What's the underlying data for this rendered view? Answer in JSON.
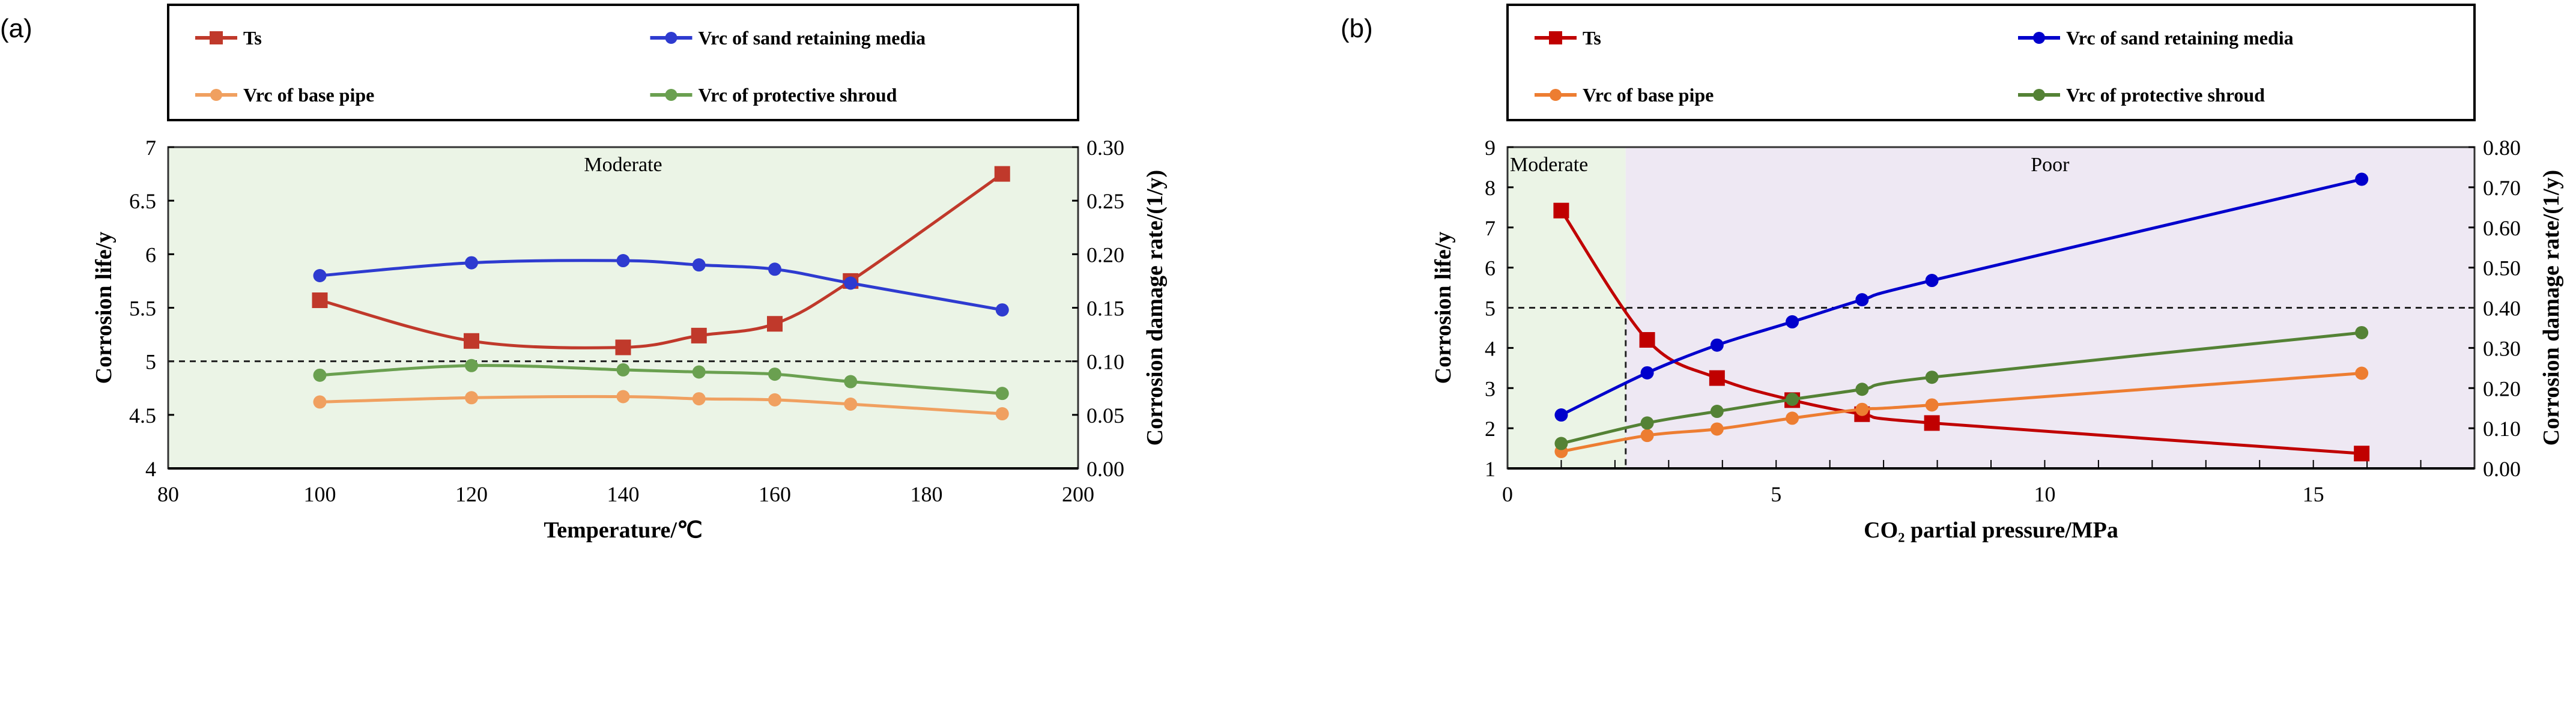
{
  "chart_data": [
    {
      "type": "line",
      "panel_label": "(a)",
      "xlabel": "Temperature/℃",
      "ylabel": "Corrosion life/y",
      "y2label": "Corrosion damage rate/(1/y)",
      "xlim": [
        80,
        200
      ],
      "ylim": [
        4,
        7
      ],
      "y2lim": [
        0,
        0.3
      ],
      "xticks": [
        "80",
        "100",
        "120",
        "140",
        "160",
        "180",
        "200"
      ],
      "yticks": [
        "4",
        "4.5",
        "5",
        "5.5",
        "6",
        "6.5",
        "7"
      ],
      "y2ticks": [
        "0.00",
        "0.05",
        "0.10",
        "0.15",
        "0.20",
        "0.25",
        "0.30"
      ],
      "threshold_y": 5,
      "zones": [
        {
          "label": "Moderate",
          "from": 80,
          "to": 200,
          "color": "#ebf4e6"
        }
      ],
      "legend_position": "top",
      "x": [
        100,
        120,
        140,
        150,
        160,
        170,
        190
      ],
      "series": [
        {
          "name": "Ts",
          "axis": "left",
          "marker": "square",
          "color": "#c0392b",
          "values": [
            5.57,
            5.19,
            5.13,
            5.24,
            5.35,
            5.75,
            6.75
          ]
        },
        {
          "name": "Vrc of sand retaining media",
          "axis": "right",
          "marker": "circle",
          "color": "#2e3bd0",
          "values": [
            0.18,
            0.192,
            0.194,
            0.19,
            0.186,
            0.173,
            0.148
          ]
        },
        {
          "name": "Vrc of base pipe",
          "axis": "right",
          "marker": "circle",
          "color": "#f0a060",
          "values": [
            0.062,
            0.066,
            0.067,
            0.065,
            0.064,
            0.06,
            0.051
          ]
        },
        {
          "name": "Vrc of protective shroud",
          "axis": "right",
          "marker": "circle",
          "color": "#6aa050",
          "values": [
            0.087,
            0.096,
            0.092,
            0.09,
            0.088,
            0.081,
            0.07
          ]
        }
      ]
    },
    {
      "type": "line",
      "panel_label": "(b)",
      "xlabel": "CO₂ partial pressure/MPa",
      "ylabel": "Corrosion life/y",
      "y2label": "Corrosion damage rate/(1/y)",
      "xlim": [
        0,
        18
      ],
      "ylim": [
        1,
        9
      ],
      "y2lim": [
        0,
        0.8
      ],
      "xticks": [
        "0",
        "5",
        "10",
        "15"
      ],
      "yticks": [
        "1",
        "2",
        "3",
        "4",
        "5",
        "6",
        "7",
        "8",
        "9"
      ],
      "y2ticks": [
        "0.00",
        "0.10",
        "0.20",
        "0.30",
        "0.40",
        "0.50",
        "0.60",
        "0.70",
        "0.80"
      ],
      "threshold_y": 5,
      "threshold_x": 2.2,
      "zones": [
        {
          "label": "Moderate",
          "from": 0,
          "to": 2.2,
          "color": "#ebf4e6"
        },
        {
          "label": "Poor",
          "from": 2.2,
          "to": 18,
          "color": "#eee8f3"
        }
      ],
      "legend_position": "top",
      "x": [
        1.0,
        2.6,
        3.9,
        5.3,
        6.6,
        7.9,
        15.9
      ],
      "series": [
        {
          "name": "Ts",
          "axis": "left",
          "marker": "square",
          "color": "#c00000",
          "values": [
            7.42,
            4.2,
            3.25,
            2.7,
            2.35,
            2.13,
            1.37
          ]
        },
        {
          "name": "Vrc of sand retaining media",
          "axis": "right",
          "marker": "circle",
          "color": "#0000cc",
          "values": [
            0.133,
            0.238,
            0.307,
            0.365,
            0.42,
            0.468,
            0.72
          ]
        },
        {
          "name": "Vrc of base pipe",
          "axis": "right",
          "marker": "circle",
          "color": "#ed7d31",
          "values": [
            0.042,
            0.082,
            0.098,
            0.125,
            0.147,
            0.158,
            0.237
          ]
        },
        {
          "name": "Vrc of protective shroud",
          "axis": "right",
          "marker": "circle",
          "color": "#548235",
          "values": [
            0.062,
            0.113,
            0.142,
            0.172,
            0.197,
            0.227,
            0.338
          ]
        }
      ]
    }
  ]
}
